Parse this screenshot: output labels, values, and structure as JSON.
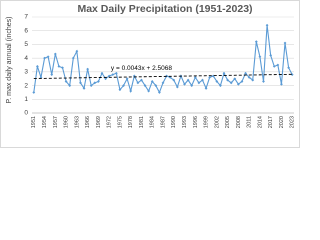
{
  "chart_data": {
    "type": "line",
    "title": "Max Daily Precipitation (1951-2023)",
    "y_label": "P. max daily annual (inches)",
    "categories": [
      1951,
      null,
      null,
      1954,
      null,
      null,
      1957,
      null,
      null,
      1960,
      null,
      null,
      1963,
      null,
      null,
      1966,
      null,
      null,
      1969,
      null,
      null,
      1972,
      null,
      null,
      1975,
      null,
      null,
      1978,
      null,
      null,
      1981,
      null,
      null,
      1984,
      null,
      null,
      1987,
      null,
      null,
      1990,
      null,
      null,
      1993,
      null,
      null,
      1996,
      null,
      null,
      1999,
      null,
      null,
      2002,
      null,
      null,
      2005,
      null,
      null,
      2008,
      null,
      null,
      2011,
      null,
      null,
      2014,
      null,
      null,
      2017,
      null,
      null,
      2020,
      null,
      null,
      2023
    ],
    "values": [
      1.5,
      3.4,
      2.6,
      4.0,
      4.1,
      2.8,
      4.3,
      3.4,
      3.3,
      2.3,
      2.0,
      4.0,
      4.5,
      2.2,
      1.8,
      3.2,
      2.0,
      2.2,
      2.3,
      2.9,
      2.5,
      2.7,
      2.8,
      2.9,
      1.7,
      2.0,
      2.5,
      1.6,
      2.7,
      2.2,
      2.4,
      2.0,
      1.6,
      2.3,
      2.0,
      1.5,
      2.2,
      2.7,
      2.6,
      2.4,
      1.9,
      2.7,
      2.1,
      2.4,
      2.0,
      2.6,
      2.2,
      2.4,
      1.8,
      2.6,
      2.7,
      2.3,
      2.0,
      2.9,
      2.4,
      2.2,
      2.5,
      2.1,
      2.3,
      2.9,
      2.6,
      2.4,
      5.2,
      4.1,
      2.3,
      6.4,
      4.2,
      3.4,
      3.5,
      2.1,
      5.1,
      3.3,
      2.8
    ],
    "color": "#5b9bd5",
    "trend": {
      "slope": 0.0043,
      "intercept": 2.5068,
      "label": "y = 0.0043x + 2.5068",
      "color": "#000000"
    },
    "ylim": [
      0,
      7
    ],
    "yticks": [
      0,
      1,
      2,
      3,
      4,
      5,
      6,
      7
    ],
    "grid": true
  }
}
